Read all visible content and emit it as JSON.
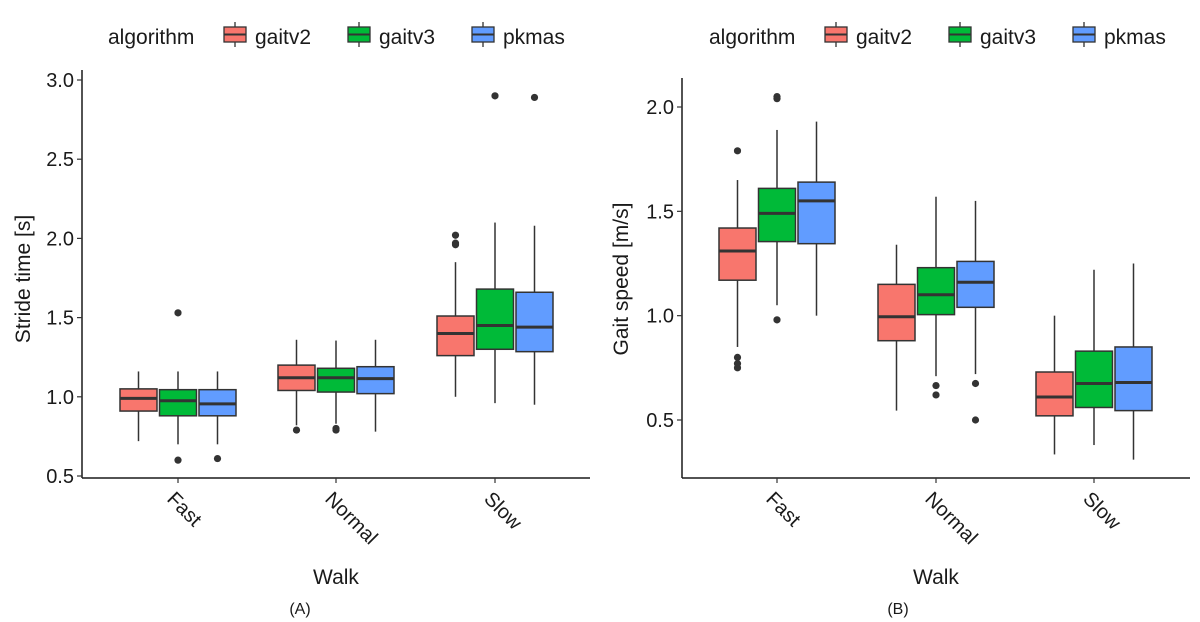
{
  "chart_data": [
    {
      "panel": "(A)",
      "type": "boxplot",
      "title": "",
      "xlabel": "Walk",
      "ylabel": "Stride time [s]",
      "ylim": [
        0.5,
        3.0
      ],
      "yticks": [
        "0.5",
        "1.0",
        "1.5",
        "2.0",
        "2.5",
        "3.0"
      ],
      "ytick_values": [
        0.5,
        1.0,
        1.5,
        2.0,
        2.5,
        3.0
      ],
      "categories": [
        "Fast",
        "Normal",
        "Slow"
      ],
      "grid": false,
      "legend": {
        "title": "algorithm",
        "position": "top",
        "entries": [
          "gaitv2",
          "gaitv3",
          "pkmas"
        ]
      },
      "series": [
        {
          "name": "gaitv2",
          "color": "#F8766D",
          "boxes": [
            {
              "lower": 0.72,
              "q1": 0.91,
              "median": 0.99,
              "q3": 1.05,
              "upper": 1.16,
              "outliers": []
            },
            {
              "lower": 0.82,
              "q1": 1.04,
              "median": 1.12,
              "q3": 1.2,
              "upper": 1.36,
              "outliers": [
                0.79
              ]
            },
            {
              "lower": 1.0,
              "q1": 1.26,
              "median": 1.4,
              "q3": 1.51,
              "upper": 1.85,
              "outliers": [
                1.96,
                1.97,
                2.02
              ]
            }
          ]
        },
        {
          "name": "gaitv3",
          "color": "#00BA38",
          "boxes": [
            {
              "lower": 0.7,
              "q1": 0.88,
              "median": 0.975,
              "q3": 1.045,
              "upper": 1.16,
              "outliers": [
                0.6,
                1.53
              ]
            },
            {
              "lower": 0.83,
              "q1": 1.03,
              "median": 1.12,
              "q3": 1.18,
              "upper": 1.355,
              "outliers": [
                0.79,
                0.8
              ]
            },
            {
              "lower": 0.96,
              "q1": 1.3,
              "median": 1.45,
              "q3": 1.68,
              "upper": 2.1,
              "outliers": [
                2.9
              ]
            }
          ]
        },
        {
          "name": "pkmas",
          "color": "#619CFF",
          "boxes": [
            {
              "lower": 0.7,
              "q1": 0.88,
              "median": 0.955,
              "q3": 1.045,
              "upper": 1.16,
              "outliers": [
                0.61
              ]
            },
            {
              "lower": 0.78,
              "q1": 1.02,
              "median": 1.115,
              "q3": 1.19,
              "upper": 1.36,
              "outliers": []
            },
            {
              "lower": 0.95,
              "q1": 1.285,
              "median": 1.44,
              "q3": 1.66,
              "upper": 2.08,
              "outliers": [
                2.89
              ]
            }
          ]
        }
      ]
    },
    {
      "panel": "(B)",
      "type": "boxplot",
      "title": "",
      "xlabel": "Walk",
      "ylabel": "Gait speed [m/s]",
      "ylim": [
        0.31,
        2.13
      ],
      "yticks": [
        "0.5",
        "1.0",
        "1.5",
        "2.0"
      ],
      "ytick_values": [
        0.5,
        1.0,
        1.5,
        2.0
      ],
      "categories": [
        "Fast",
        "Normal",
        "Slow"
      ],
      "grid": false,
      "legend": {
        "title": "algorithm",
        "position": "top",
        "entries": [
          "gaitv2",
          "gaitv3",
          "pkmas"
        ]
      },
      "series": [
        {
          "name": "gaitv2",
          "color": "#F8766D",
          "boxes": [
            {
              "lower": 0.85,
              "q1": 1.17,
              "median": 1.31,
              "q3": 1.42,
              "upper": 1.65,
              "outliers": [
                0.75,
                0.77,
                0.8,
                1.79
              ]
            },
            {
              "lower": 0.545,
              "q1": 0.88,
              "median": 0.995,
              "q3": 1.15,
              "upper": 1.34,
              "outliers": []
            },
            {
              "lower": 0.335,
              "q1": 0.52,
              "median": 0.61,
              "q3": 0.73,
              "upper": 1.0,
              "outliers": []
            }
          ]
        },
        {
          "name": "gaitv3",
          "color": "#00BA38",
          "boxes": [
            {
              "lower": 1.05,
              "q1": 1.355,
              "median": 1.49,
              "q3": 1.61,
              "upper": 1.89,
              "outliers": [
                0.98,
                2.04,
                2.05
              ]
            },
            {
              "lower": 0.71,
              "q1": 1.005,
              "median": 1.1,
              "q3": 1.23,
              "upper": 1.57,
              "outliers": [
                0.62,
                0.665
              ]
            },
            {
              "lower": 0.38,
              "q1": 0.56,
              "median": 0.675,
              "q3": 0.83,
              "upper": 1.22,
              "outliers": []
            }
          ]
        },
        {
          "name": "pkmas",
          "color": "#619CFF",
          "boxes": [
            {
              "lower": 1.0,
              "q1": 1.345,
              "median": 1.55,
              "q3": 1.64,
              "upper": 1.93,
              "outliers": []
            },
            {
              "lower": 0.72,
              "q1": 1.04,
              "median": 1.16,
              "q3": 1.26,
              "upper": 1.55,
              "outliers": [
                0.5,
                0.675
              ]
            },
            {
              "lower": 0.31,
              "q1": 0.545,
              "median": 0.68,
              "q3": 0.85,
              "upper": 1.25,
              "outliers": []
            }
          ]
        }
      ]
    }
  ],
  "colors": {
    "gaitv2": "#F8766D",
    "gaitv3": "#00BA38",
    "pkmas": "#619CFF",
    "box_outline": "#333333"
  }
}
